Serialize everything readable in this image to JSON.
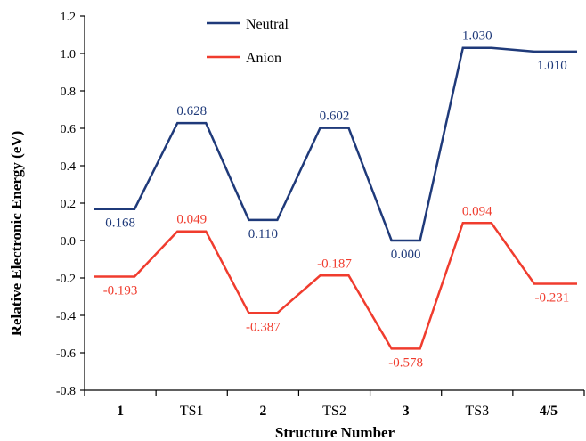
{
  "chart_data": {
    "type": "line",
    "xlabel": "Structure Number",
    "ylabel": "Relative Electronic Energy (eV)",
    "categories": [
      "1",
      "TS1",
      "2",
      "TS2",
      "3",
      "TS3",
      "4/5"
    ],
    "bold_categories": [
      "1",
      "2",
      "3",
      "4/5"
    ],
    "ylim": [
      -0.8,
      1.2
    ],
    "yticks": [
      "1.2",
      "1.0",
      "0.8",
      "0.6",
      "0.4",
      "0.2",
      "0.0",
      "-0.2",
      "-0.4",
      "-0.6",
      "-0.8"
    ],
    "ytick_values": [
      1.2,
      1.0,
      0.8,
      0.6,
      0.4,
      0.2,
      0.0,
      -0.2,
      -0.4,
      -0.6,
      -0.8
    ],
    "grid": false,
    "legend_position": "top-center",
    "series": [
      {
        "name": "Neutral",
        "color": "#1f3a7a",
        "values": [
          0.168,
          0.628,
          0.11,
          0.602,
          0.0,
          1.03,
          1.01
        ],
        "labels": [
          "0.168",
          "0.628",
          "0.110",
          "0.602",
          "0.000",
          "1.030",
          "1.010"
        ],
        "label_side": [
          "below",
          "above",
          "below",
          "above",
          "below",
          "above",
          "below"
        ]
      },
      {
        "name": "Anion",
        "color": "#f03c2e",
        "values": [
          -0.193,
          0.049,
          -0.387,
          -0.187,
          -0.578,
          0.094,
          -0.231
        ],
        "labels": [
          "-0.193",
          "0.049",
          "-0.387",
          "-0.187",
          "-0.578",
          "0.094",
          "-0.231"
        ],
        "label_side": [
          "below",
          "above",
          "below",
          "above",
          "below",
          "above",
          "below"
        ]
      }
    ]
  }
}
